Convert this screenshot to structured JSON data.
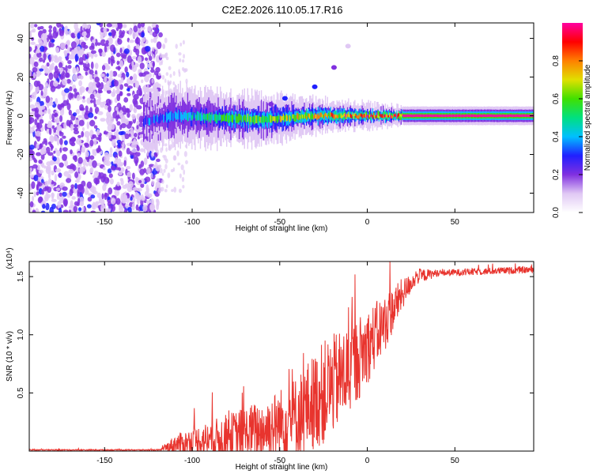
{
  "title": "C2E2.2026.110.05.17.R16",
  "chart_data": [
    {
      "type": "heatmap",
      "title": "",
      "xlabel": "Height of straight line (km)",
      "ylabel": "Frequency (Hz)",
      "xlim": [
        -193,
        95
      ],
      "ylim": [
        -50,
        48
      ],
      "xticks": [
        -150,
        -100,
        -50,
        0,
        50
      ],
      "xtick_labels": [
        "-150",
        "-100",
        "-50",
        "0",
        "50"
      ],
      "yticks": [
        -40,
        -20,
        0,
        20,
        40
      ],
      "ytick_labels": [
        "-40",
        "-20",
        "0",
        "20",
        "40"
      ],
      "colorbar": {
        "label": "Normalized spectral amplitude",
        "range": [
          0,
          1
        ],
        "ticks": [
          0.0,
          0.2,
          0.4,
          0.6,
          0.8
        ],
        "tick_labels": [
          "0.0",
          "0.2",
          "0.4",
          "0.6",
          "0.8"
        ],
        "colors": [
          "#ffffff",
          "#e0c8f4",
          "#8030e0",
          "#2020ff",
          "#00c0ff",
          "#00e080",
          "#40e000",
          "#e0e000",
          "#ff8000",
          "#ff0000",
          "#ff00a0"
        ]
      },
      "noise_region_x": [
        -193,
        -118
      ],
      "signal_band": {
        "x_start": -128,
        "x_end": 95,
        "center_freq": [
          [
            -128,
            -3
          ],
          [
            -110,
            0
          ],
          [
            -60,
            -2
          ],
          [
            -30,
            0
          ],
          [
            0,
            0
          ],
          [
            95,
            0
          ]
        ],
        "half_width": [
          [
            -128,
            6
          ],
          [
            -60,
            5
          ],
          [
            -20,
            3
          ],
          [
            20,
            2
          ],
          [
            95,
            2
          ]
        ],
        "peak_amplitude": [
          [
            -128,
            0.3
          ],
          [
            -80,
            0.55
          ],
          [
            -40,
            0.7
          ],
          [
            -10,
            0.85
          ],
          [
            20,
            0.95
          ],
          [
            95,
            0.95
          ]
        ]
      },
      "blobs": [
        {
          "x": -47,
          "y": 9,
          "amp": 0.25
        },
        {
          "x": -30,
          "y": 15,
          "amp": 0.25
        },
        {
          "x": -19,
          "y": 25,
          "amp": 0.15
        },
        {
          "x": -11,
          "y": 36,
          "amp": 0.1
        },
        {
          "x": -55,
          "y": 6,
          "amp": 0.15
        }
      ]
    },
    {
      "type": "line",
      "title": "",
      "xlabel": "Height of straight line (km)",
      "ylabel": "SNR (10 * v/v)",
      "y_multiplier": "(x10⁴)",
      "xlim": [
        -193,
        95
      ],
      "ylim": [
        0,
        1.63
      ],
      "xticks": [
        -150,
        -100,
        -50,
        0,
        50
      ],
      "xtick_labels": [
        "-150",
        "-100",
        "-50",
        "0",
        "50"
      ],
      "yticks": [
        0.5,
        1.0,
        1.5
      ],
      "ytick_labels": [
        "0.5",
        "1.0",
        "1.5"
      ],
      "color": "#e8342e",
      "trend": [
        [
          -193,
          0.01
        ],
        [
          -118,
          0.01
        ],
        [
          -110,
          0.06
        ],
        [
          -80,
          0.12
        ],
        [
          -60,
          0.18
        ],
        [
          -40,
          0.3
        ],
        [
          -25,
          0.5
        ],
        [
          -10,
          0.7
        ],
        [
          0,
          0.9
        ],
        [
          10,
          1.1
        ],
        [
          20,
          1.35
        ],
        [
          28,
          1.5
        ],
        [
          40,
          1.53
        ],
        [
          95,
          1.56
        ]
      ],
      "noise_amp": [
        [
          -193,
          0.005
        ],
        [
          -118,
          0.005
        ],
        [
          -110,
          0.08
        ],
        [
          -80,
          0.2
        ],
        [
          -50,
          0.3
        ],
        [
          -25,
          0.45
        ],
        [
          -10,
          0.4
        ],
        [
          10,
          0.25
        ],
        [
          25,
          0.08
        ],
        [
          40,
          0.03
        ],
        [
          95,
          0.03
        ]
      ]
    }
  ]
}
